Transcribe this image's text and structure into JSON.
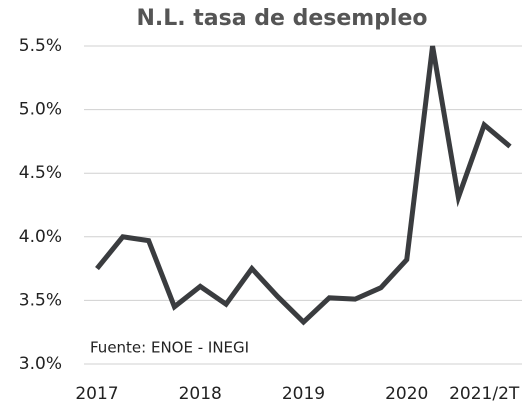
{
  "chart_data": {
    "type": "line",
    "title": "N.L. tasa de desempleo",
    "annotation": "Fuente: ENOE - INEGI",
    "categories": [
      "2017",
      null,
      null,
      null,
      "2018",
      null,
      null,
      null,
      "2019",
      null,
      null,
      null,
      "2020",
      null,
      null,
      "2021/2T",
      null
    ],
    "series": [
      {
        "name": "N.L. tasa de desempleo",
        "color": "#3a3c3f",
        "values": [
          3.75,
          4.0,
          3.97,
          3.45,
          3.61,
          3.47,
          3.75,
          3.53,
          3.33,
          3.52,
          3.51,
          3.6,
          3.82,
          5.5,
          4.31,
          4.88,
          4.71
        ]
      }
    ],
    "ylim": [
      3.0,
      5.5
    ],
    "yticks": [
      {
        "value": 3.0,
        "label": "3.0%"
      },
      {
        "value": 3.5,
        "label": "3.5%"
      },
      {
        "value": 4.0,
        "label": "4.0%"
      },
      {
        "value": 4.5,
        "label": "4.5%"
      },
      {
        "value": 5.0,
        "label": "5.0%"
      },
      {
        "value": 5.5,
        "label": "5.5%"
      }
    ],
    "grid": true
  }
}
